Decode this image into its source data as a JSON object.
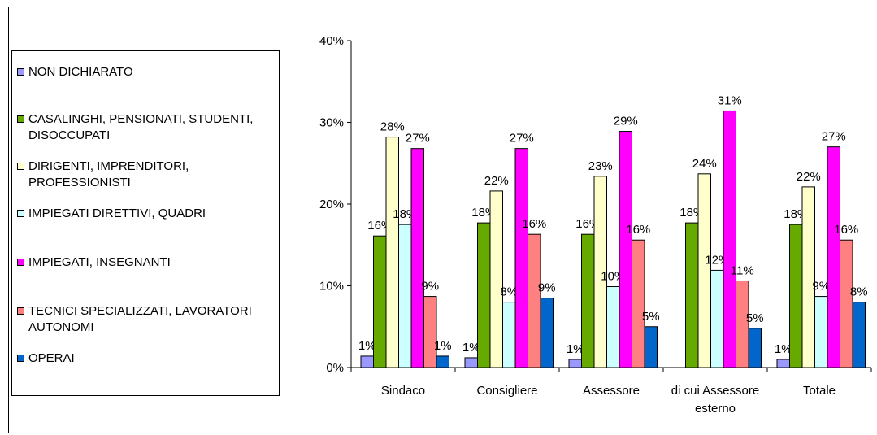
{
  "chart_data": {
    "type": "bar",
    "categories": [
      "Sindaco",
      "Consigliere",
      "Assessore",
      "di cui Assessore esterno",
      "Totale"
    ],
    "series": [
      {
        "name": "NON DICHIARATO",
        "color": "#9999ff",
        "values": [
          1.4,
          1.2,
          1.0,
          0,
          1.0
        ],
        "labels": [
          "1%",
          "1%",
          "1%",
          "",
          "1%"
        ]
      },
      {
        "name": "CASALINGHI, PENSIONATI, STUDENTI, DISOCCUPATI",
        "color": "#66aa00",
        "values": [
          16.1,
          17.7,
          16.3,
          17.7,
          17.5
        ],
        "labels": [
          "16%",
          "18%",
          "16%",
          "18%",
          "18%"
        ]
      },
      {
        "name": "DIRIGENTI, IMPRENDITORI, PROFESSIONISTI",
        "color": "#ffffcc",
        "values": [
          28.2,
          21.6,
          23.4,
          23.7,
          22.1
        ],
        "labels": [
          "28%",
          "22%",
          "23%",
          "24%",
          "22%"
        ]
      },
      {
        "name": "IMPIEGATI DIRETTIVI, QUADRI",
        "color": "#ccffff",
        "values": [
          17.5,
          8.0,
          9.9,
          11.9,
          8.7
        ],
        "labels": [
          "18%",
          "8%",
          "10%",
          "12%",
          "9%"
        ]
      },
      {
        "name": "IMPIEGATI, INSEGNANTI",
        "color": "#ff00ff",
        "values": [
          26.8,
          26.8,
          28.9,
          31.4,
          27.0
        ],
        "labels": [
          "27%",
          "27%",
          "29%",
          "31%",
          "27%"
        ]
      },
      {
        "name": "TECNICI SPECIALIZZATI, LAVORATORI AUTONOMI",
        "color": "#ff8080",
        "values": [
          8.7,
          16.3,
          15.6,
          10.6,
          15.6
        ],
        "labels": [
          "9%",
          "16%",
          "16%",
          "11%",
          "16%"
        ]
      },
      {
        "name": "OPERAI",
        "color": "#0066cc",
        "values": [
          1.4,
          8.5,
          5.0,
          4.8,
          8.0
        ],
        "labels": [
          "1%",
          "9%",
          "5%",
          "5%",
          "8%"
        ]
      }
    ],
    "ylim": [
      0,
      40
    ],
    "yticks": [
      0,
      10,
      20,
      30,
      40
    ],
    "ytick_labels": [
      "0%",
      "10%",
      "20%",
      "30%",
      "40%"
    ],
    "grid": false,
    "legend_position": "left"
  }
}
